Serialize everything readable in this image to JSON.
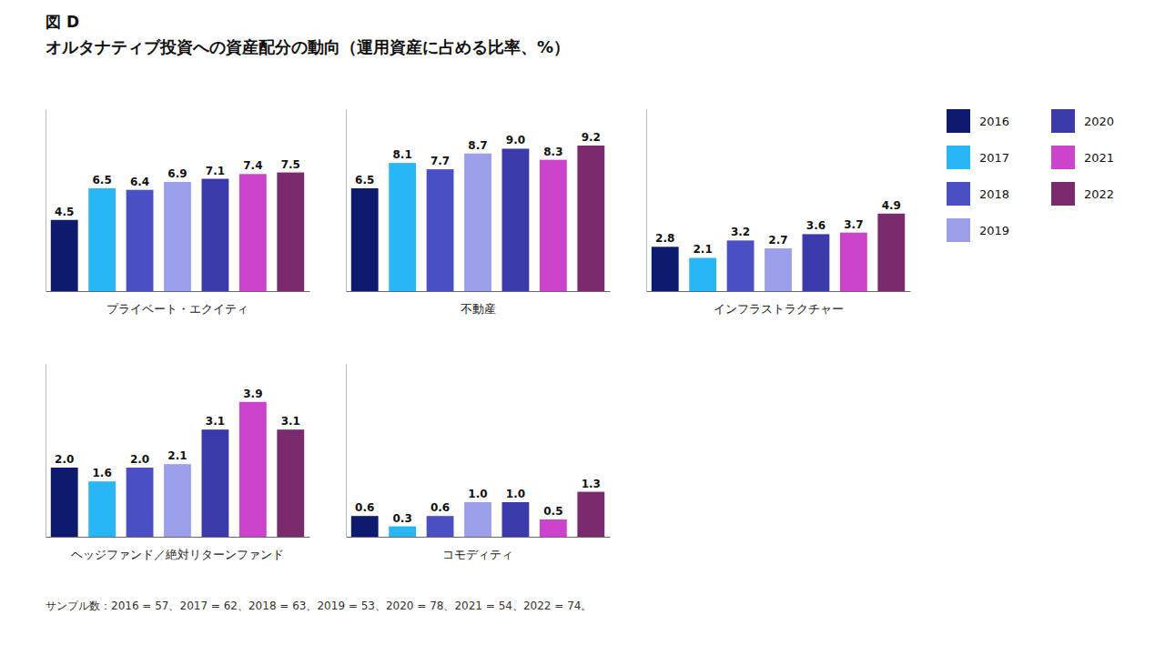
{
  "title": "図 D",
  "subtitle": "オルタナティブ投資への資産配分の動向（運用資産に占める比率、%）",
  "footnote": "サンプル数：2016 = 57、2017 = 62、2018 = 63、2019 = 53、2020 = 78、2021 = 54、2022 = 74。",
  "chart_data": [
    {
      "type": "bar",
      "xlabel": "プライベート・エクイティ",
      "categories": [
        "2016",
        "2017",
        "2018",
        "2019",
        "2020",
        "2021",
        "2022"
      ],
      "values": [
        4.5,
        6.5,
        6.4,
        6.9,
        7.1,
        7.4,
        7.5
      ],
      "value_labels": [
        "4.5",
        "6.5",
        "6.4",
        "6.9",
        "7.1",
        "7.4",
        "7.5"
      ],
      "colors": [
        "#0d1b6e",
        "#29b6f6",
        "#4a4fc4",
        "#9b9ee8",
        "#3a3aaa",
        "#cc44cc",
        "#7b2a6e"
      ],
      "ylim": [
        0,
        11.5
      ],
      "yticks": [],
      "grid": false,
      "tick_labels": false,
      "data_labels": true,
      "legend": "upper right"
    },
    {
      "type": "bar",
      "xlabel": "不動産",
      "categories": [
        "2016",
        "2017",
        "2018",
        "2019",
        "2020",
        "2021",
        "2022"
      ],
      "values": [
        6.5,
        8.1,
        7.7,
        8.7,
        9.0,
        8.3,
        9.2
      ],
      "value_labels": [
        "6.5",
        "8.1",
        "7.7",
        "8.7",
        "9.0",
        "8.3",
        "9.2"
      ],
      "colors": [
        "#0d1b6e",
        "#29b6f6",
        "#4a4fc4",
        "#9b9ee8",
        "#3a3aaa",
        "#cc44cc",
        "#7b2a6e"
      ],
      "ylim": [
        0,
        11.5
      ],
      "yticks": [],
      "grid": false,
      "tick_labels": false,
      "data_labels": true
    },
    {
      "type": "bar",
      "xlabel": "インフラストラクチャー",
      "categories": [
        "2016",
        "2017",
        "2018",
        "2019",
        "2020",
        "2021",
        "2022"
      ],
      "values": [
        2.8,
        2.1,
        3.2,
        2.7,
        3.6,
        3.7,
        4.9
      ],
      "value_labels": [
        "2.8",
        "2.1",
        "3.2",
        "2.7",
        "3.6",
        "3.7",
        "4.9"
      ],
      "colors": [
        "#0d1b6e",
        "#29b6f6",
        "#4a4fc4",
        "#9b9ee8",
        "#3a3aaa",
        "#cc44cc",
        "#7b2a6e"
      ],
      "ylim": [
        0,
        11.5
      ],
      "yticks": [],
      "grid": false,
      "tick_labels": false,
      "data_labels": true
    },
    {
      "type": "bar",
      "xlabel": "ヘッジファンド／絶対リターンファンド",
      "categories": [
        "2016",
        "2017",
        "2018",
        "2019",
        "2020",
        "2021",
        "2022"
      ],
      "values": [
        2.0,
        1.6,
        2.0,
        2.1,
        3.1,
        3.9,
        3.1
      ],
      "value_labels": [
        "2.0",
        "1.6",
        "2.0",
        "2.1",
        "3.1",
        "3.9",
        "3.1"
      ],
      "colors": [
        "#0d1b6e",
        "#29b6f6",
        "#4a4fc4",
        "#9b9ee8",
        "#3a3aaa",
        "#cc44cc",
        "#7b2a6e"
      ],
      "ylim": [
        0,
        5.0
      ],
      "yticks": [],
      "grid": false,
      "tick_labels": false,
      "data_labels": true
    },
    {
      "type": "bar",
      "xlabel": "コモディティ",
      "categories": [
        "2016",
        "2017",
        "2018",
        "2019",
        "2020",
        "2021",
        "2022"
      ],
      "values": [
        0.6,
        0.3,
        0.6,
        1.0,
        1.0,
        0.5,
        1.3
      ],
      "value_labels": [
        "0.6",
        "0.3",
        "0.6",
        "1.0",
        "1.0",
        "0.5",
        "1.3"
      ],
      "colors": [
        "#0d1b6e",
        "#29b6f6",
        "#4a4fc4",
        "#9b9ee8",
        "#3a3aaa",
        "#cc44cc",
        "#7b2a6e"
      ],
      "ylim": [
        0,
        5.0
      ],
      "yticks": [],
      "grid": false,
      "tick_labels": false,
      "data_labels": true
    }
  ]
}
